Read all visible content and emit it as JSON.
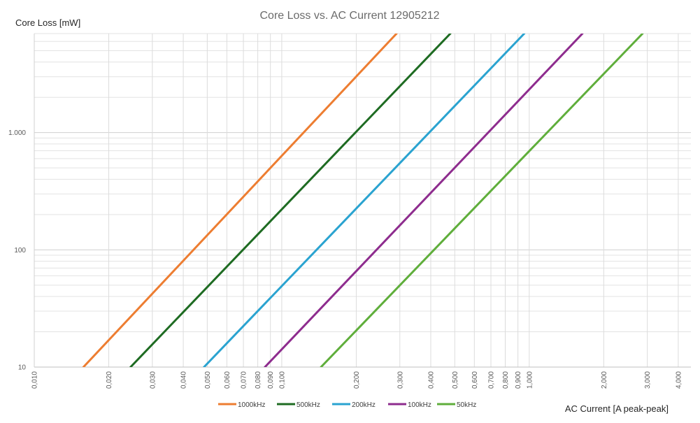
{
  "chart_data": {
    "type": "line",
    "title": "Core Loss vs. AC Current 12905212",
    "xlabel": "AC Current [A peak-peak]",
    "ylabel": "Core Loss [mW]",
    "x_scale": "log",
    "y_scale": "log",
    "xlim": [
      0.01,
      4.5
    ],
    "ylim": [
      10,
      7000
    ],
    "x_tick_values": [
      0.01,
      0.02,
      0.03,
      0.04,
      0.05,
      0.06,
      0.07,
      0.08,
      0.09,
      0.1,
      0.2,
      0.3,
      0.4,
      0.5,
      0.6,
      0.7,
      0.8,
      0.9,
      1,
      2,
      3,
      4
    ],
    "x_tick_labels": [
      "0,010",
      "0,020",
      "0,030",
      "0,040",
      "0,050",
      "0,060",
      "0,070",
      "0,080",
      "0,090",
      "0,100",
      "0,200",
      "0,300",
      "0,400",
      "0,500",
      "0,600",
      "0,700",
      "0,800",
      "0,900",
      "1,000",
      "2,000",
      "3,000",
      "4,000"
    ],
    "y_tick_values": [
      10,
      100,
      1000
    ],
    "y_tick_labels": [
      "10",
      "100",
      "1.000"
    ],
    "grid": true,
    "legend_position": "bottom",
    "series": [
      {
        "name": "1000kHz",
        "color": "#ED7D31",
        "x": [
          0.0158,
          0.291
        ],
        "y": [
          10,
          7000
        ]
      },
      {
        "name": "500kHz",
        "color": "#1E6B22",
        "x": [
          0.0245,
          0.48
        ],
        "y": [
          10,
          7000
        ]
      },
      {
        "name": "200kHz",
        "color": "#2AA3D0",
        "x": [
          0.0485,
          0.955
        ],
        "y": [
          10,
          7000
        ]
      },
      {
        "name": "100kHz",
        "color": "#8E2C8E",
        "x": [
          0.0855,
          1.64
        ],
        "y": [
          10,
          7000
        ]
      },
      {
        "name": "50kHz",
        "color": "#5FAE3B",
        "x": [
          0.144,
          2.87
        ],
        "y": [
          10,
          7000
        ]
      }
    ]
  }
}
